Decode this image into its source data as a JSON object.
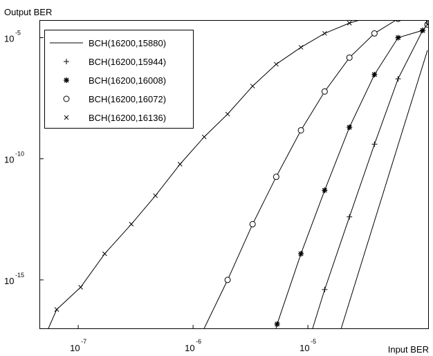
{
  "chart_data": {
    "type": "line",
    "xlabel": "Input BER",
    "ylabel": "Output BER",
    "xscale": "log",
    "yscale": "log",
    "xlim": [
      5.5e-08,
      0.00011
    ],
    "ylim": [
      1e-17,
      5e-05
    ],
    "grid": false,
    "legend_position": "top-left",
    "x_ticks": [
      {
        "base": "10",
        "exp": "-7",
        "value": 1e-07
      },
      {
        "base": "10",
        "exp": "-6",
        "value": 1e-06
      },
      {
        "base": "10",
        "exp": "-5",
        "value": 1e-05
      }
    ],
    "y_ticks": [
      {
        "base": "10",
        "exp": "-5",
        "value": 1e-05
      },
      {
        "base": "10",
        "exp": "-10",
        "value": 1e-10
      },
      {
        "base": "10",
        "exp": "-15",
        "value": 1e-15
      }
    ],
    "series": [
      {
        "name": "BCH(16200,15880)",
        "marker": "none",
        "x": [
          1.95e-05,
          0.00011
        ],
        "y": [
          1e-17,
          3e-06
        ]
      },
      {
        "name": "BCH(16200,15944)",
        "marker": "plus",
        "x": [
          1.1e-05,
          1.4e-05,
          2.3e-05,
          3.8e-05,
          6.1e-05,
          0.0001,
          0.00011
        ],
        "y": [
          1e-17,
          4e-16,
          4e-13,
          4e-10,
          2e-07,
          2e-05,
          3.5e-05
        ]
      },
      {
        "name": "BCH(16200,16008)",
        "marker": "star",
        "x": [
          5.3e-06,
          5.4e-06,
          8.7e-06,
          1.4e-05,
          2.3e-05,
          3.8e-05,
          6.1e-05,
          0.0001,
          0.00011
        ],
        "y": [
          1e-17,
          1.5e-17,
          1.2e-14,
          5e-12,
          2e-09,
          3e-07,
          1e-05,
          2e-05,
          3.5e-05
        ]
      },
      {
        "name": "BCH(16200,16072)",
        "marker": "circle",
        "x": [
          1.25e-06,
          2e-06,
          3.3e-06,
          5.3e-06,
          8.7e-06,
          1.4e-05,
          2.3e-05,
          3.8e-05,
          6.1e-05,
          0.0001,
          0.00011
        ],
        "y": [
          1e-17,
          1e-15,
          2e-13,
          1.8e-11,
          1.5e-09,
          6e-08,
          1.5e-06,
          1.5e-05,
          6e-05,
          0.00015,
          3.5e-05
        ]
      },
      {
        "name": "BCH(16200,16136)",
        "marker": "cross",
        "x": [
          5.5e-08,
          6.5e-08,
          1.05e-07,
          1.7e-07,
          2.9e-07,
          4.7e-07,
          7.7e-07,
          1.25e-06,
          2e-06,
          3.3e-06,
          5.3e-06,
          8.7e-06,
          1.4e-05,
          2.3e-05,
          3.8e-05,
          6.1e-05,
          0.0001,
          0.00011
        ],
        "y": [
          1e-17,
          6e-17,
          5e-16,
          1.2e-14,
          2e-13,
          3e-12,
          6e-11,
          8e-10,
          7e-09,
          1e-07,
          8e-07,
          4e-06,
          1.5e-05,
          4e-05,
          8e-05,
          0.00012,
          0.0002,
          3.5e-05
        ]
      }
    ]
  }
}
